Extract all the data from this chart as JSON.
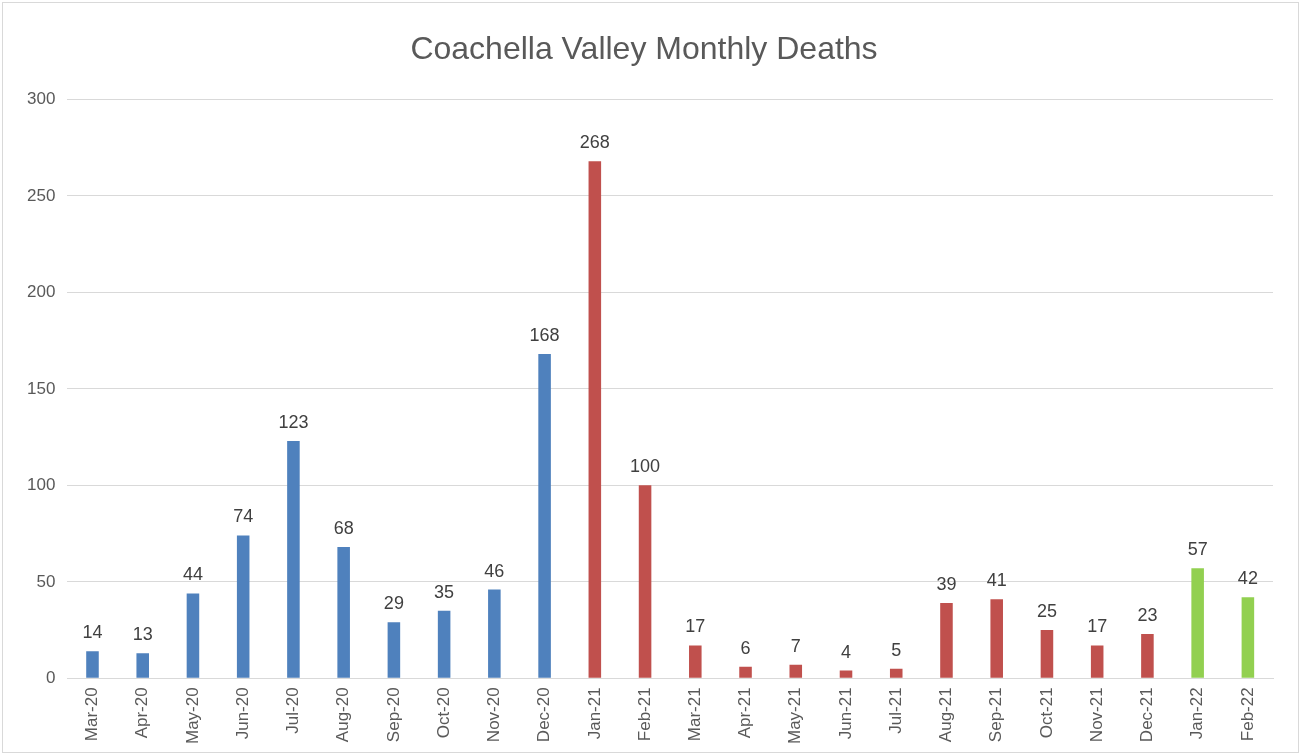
{
  "chart_data": {
    "type": "bar",
    "title": "Coachella Valley Monthly Deaths",
    "categories": [
      "Mar-20",
      "Apr-20",
      "May-20",
      "Jun-20",
      "Jul-20",
      "Aug-20",
      "Sep-20",
      "Oct-20",
      "Nov-20",
      "Dec-20",
      "Jan-21",
      "Feb-21",
      "Mar-21",
      "Apr-21",
      "May-21",
      "Jun-21",
      "Jul-21",
      "Aug-21",
      "Sep-21",
      "Oct-21",
      "Nov-21",
      "Dec-21",
      "Jan-22",
      "Feb-22"
    ],
    "values": [
      14,
      13,
      44,
      74,
      123,
      68,
      29,
      35,
      46,
      168,
      268,
      100,
      17,
      6,
      7,
      4,
      5,
      39,
      41,
      25,
      17,
      23,
      57,
      42
    ],
    "colors": [
      "#4f81bd",
      "#4f81bd",
      "#4f81bd",
      "#4f81bd",
      "#4f81bd",
      "#4f81bd",
      "#4f81bd",
      "#4f81bd",
      "#4f81bd",
      "#4f81bd",
      "#c0504d",
      "#c0504d",
      "#c0504d",
      "#c0504d",
      "#c0504d",
      "#c0504d",
      "#c0504d",
      "#c0504d",
      "#c0504d",
      "#c0504d",
      "#c0504d",
      "#c0504d",
      "#92d050",
      "#92d050"
    ],
    "ylim": [
      0,
      300
    ],
    "yticks": [
      0,
      50,
      100,
      150,
      200,
      250,
      300
    ],
    "grid": "y",
    "data_labels": true
  }
}
